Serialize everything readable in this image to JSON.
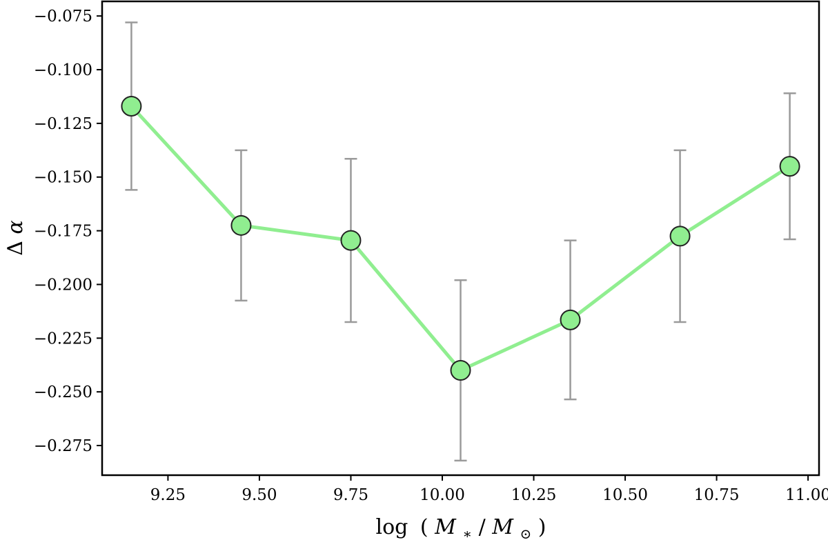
{
  "chart_data": {
    "type": "line",
    "title": "",
    "xlabel_parts": {
      "func": "log",
      "open": "(",
      "num": "M",
      "num_sub": "∗",
      "slash": "/",
      "den": "M",
      "den_sub": "⊙",
      "close": ")"
    },
    "ylabel_parts": {
      "delta": "Δ",
      "alpha": "α"
    },
    "xlim": [
      9.07,
      11.03
    ],
    "ylim": [
      -0.2888,
      -0.0682
    ],
    "xticks": [
      9.25,
      9.5,
      9.75,
      10.0,
      10.25,
      10.5,
      10.75,
      11.0
    ],
    "xtick_labels": [
      "9.25",
      "9.50",
      "9.75",
      "10.00",
      "10.25",
      "10.50",
      "10.75",
      "11.00"
    ],
    "yticks": [
      -0.075,
      -0.1,
      -0.125,
      -0.15,
      -0.175,
      -0.2,
      -0.225,
      -0.25,
      -0.275
    ],
    "ytick_labels": [
      "−0.075",
      "−0.100",
      "−0.125",
      "−0.150",
      "−0.175",
      "−0.200",
      "−0.225",
      "−0.250",
      "−0.275"
    ],
    "grid": false,
    "series": [
      {
        "x": [
          9.15,
          9.45,
          9.75,
          10.05,
          10.35,
          10.65,
          10.95
        ],
        "y": [
          -0.117,
          -0.1725,
          -0.1795,
          -0.24,
          -0.2165,
          -0.1775,
          -0.145
        ],
        "yerr_low": [
          0.039,
          0.035,
          0.038,
          0.042,
          0.037,
          0.04,
          0.034
        ],
        "yerr_high": [
          0.039,
          0.035,
          0.038,
          0.042,
          0.037,
          0.04,
          0.034
        ]
      }
    ],
    "colors": {
      "line": "#90ee90",
      "marker_fill": "#90ee90",
      "marker_edge": "#222222",
      "errorbar": "#9a9a9a",
      "frame": "#000000"
    }
  }
}
